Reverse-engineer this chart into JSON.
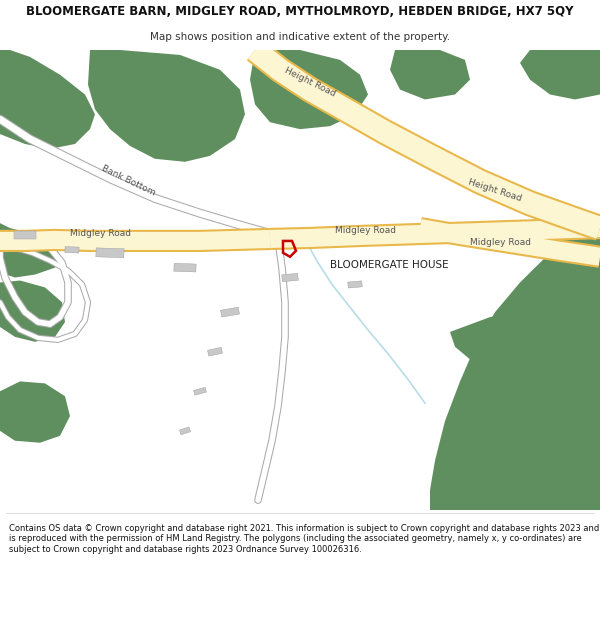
{
  "title_line1": "BLOOMERGATE BARN, MIDGLEY ROAD, MYTHOLMROYD, HEBDEN BRIDGE, HX7 5QY",
  "title_line2": "Map shows position and indicative extent of the property.",
  "footer": "Contains OS data © Crown copyright and database right 2021. This information is subject to Crown copyright and database rights 2023 and is reproduced with the permission of HM Land Registry. The polygons (including the associated geometry, namely x, y co-ordinates) are subject to Crown copyright and database rights 2023 Ordnance Survey 100026316.",
  "bg_color": "#ffffff",
  "road_fill": "#fdf6d3",
  "road_border": "#e8b84b",
  "green_color": "#5f8f5f",
  "red_color": "#cc0000",
  "minor_road_color": "#d0d0d0",
  "building_color": "#c8c8c8",
  "stream_color": "#b8dce8",
  "text_road": "#555555",
  "text_house": "#333333"
}
